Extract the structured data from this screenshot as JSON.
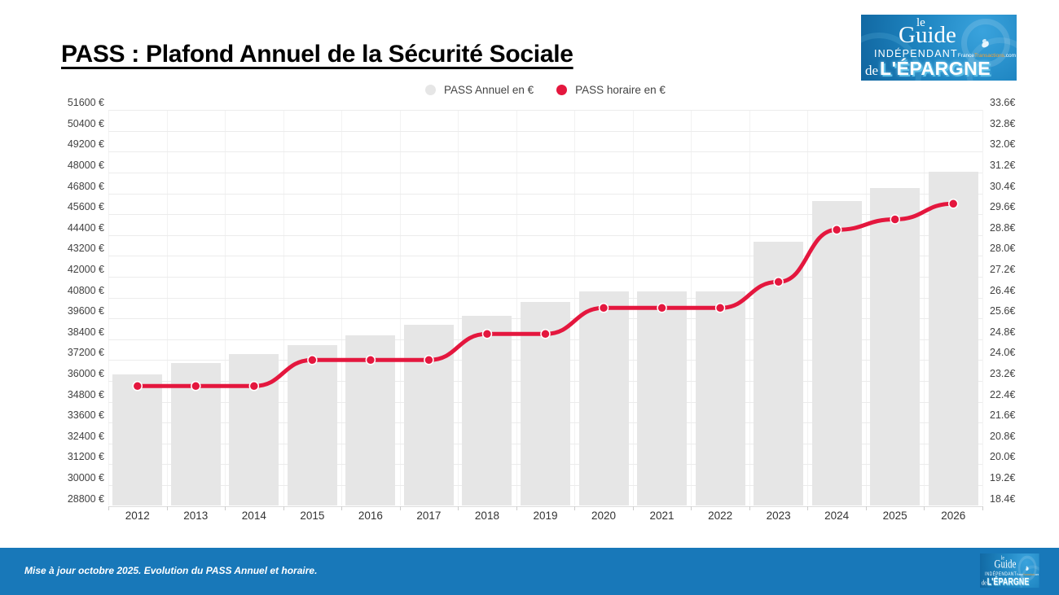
{
  "header": {
    "title": "PASS : Plafond Annuel de la Sécurité Sociale"
  },
  "logo": {
    "le": "le",
    "guide": "Guide",
    "independant": "INDÉPENDANT",
    "site_france": "France",
    "site_transactions": "Transactions",
    "site_com": ".com",
    "de": "de",
    "epargne": "L'ÉPARGNE"
  },
  "footer": {
    "note": "Mise à jour octobre 2025. Evolution du PASS Annuel et horaire."
  },
  "chart_data": {
    "type": "bar",
    "title": "PASS : Plafond Annuel de la Sécurité Sociale",
    "categories": [
      "2012",
      "2013",
      "2014",
      "2015",
      "2016",
      "2017",
      "2018",
      "2019",
      "2020",
      "2021",
      "2022",
      "2023",
      "2024",
      "2025",
      "2026"
    ],
    "series": [
      {
        "name": "PASS Annuel en €",
        "type": "bar",
        "axis": "left",
        "color": "#e6e6e6",
        "values": [
          36372,
          37032,
          37548,
          38040,
          38616,
          39228,
          39732,
          40524,
          41136,
          41136,
          41136,
          43992,
          46368,
          47100,
          48060
        ]
      },
      {
        "name": "PASS horaire en €",
        "type": "line",
        "axis": "right",
        "color": "#e4173e",
        "values": [
          23,
          23,
          23,
          24,
          24,
          24,
          25,
          25,
          26,
          26,
          26,
          27,
          29,
          29.4,
          30
        ]
      }
    ],
    "left_axis": {
      "min": 28800,
      "max": 51600,
      "step": 1200,
      "ticks": [
        "28800 €",
        "30000 €",
        "31200 €",
        "32400 €",
        "33600 €",
        "34800 €",
        "36000 €",
        "37200 €",
        "38400 €",
        "39600 €",
        "40800 €",
        "42000 €",
        "43200 €",
        "44400 €",
        "45600 €",
        "46800 €",
        "48000 €",
        "49200 €",
        "50400 €",
        "51600 €"
      ]
    },
    "right_axis": {
      "min": 18.4,
      "max": 33.6,
      "step": 0.8,
      "ticks": [
        "18.4€",
        "19.2€",
        "20.0€",
        "20.8€",
        "21.6€",
        "22.4€",
        "23.2€",
        "24.0€",
        "24.8€",
        "25.6€",
        "26.4€",
        "27.2€",
        "28.0€",
        "28.8€",
        "29.6€",
        "30.4€",
        "31.2€",
        "32.0€",
        "32.8€",
        "33.6€"
      ]
    },
    "grid": true,
    "legend_position": "top-center",
    "colors": {
      "bar": "#e6e6e6",
      "line": "#e4173e",
      "gridline": "#ececec",
      "footer_blue": "#1878b9"
    }
  }
}
